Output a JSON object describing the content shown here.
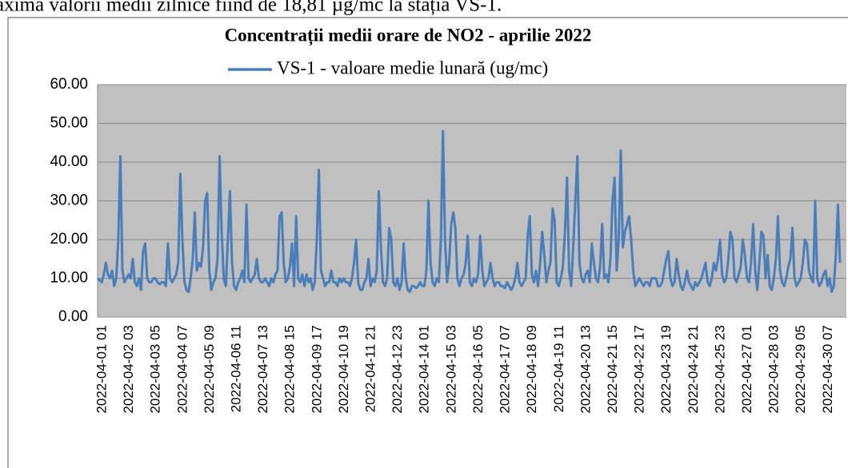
{
  "caption": "axima valorii medii zilnice fiind de 18,81 µg/mc la stația VS-1.",
  "chart_data": {
    "type": "line",
    "title": "Concentrații medii orare de NO2 - aprilie 2022",
    "ylim": [
      0,
      60
    ],
    "yticks": [
      {
        "value": 0,
        "label": "0.00"
      },
      {
        "value": 10,
        "label": "10.00"
      },
      {
        "value": 20,
        "label": "20.00"
      },
      {
        "value": 30,
        "label": "30.00"
      },
      {
        "value": 40,
        "label": "40.00"
      },
      {
        "value": 50,
        "label": "50.00"
      },
      {
        "value": 60,
        "label": "60.00"
      }
    ],
    "grid": true,
    "legend": "top",
    "categories": [
      "2022-04-01 01",
      null,
      null,
      null,
      null,
      null,
      null,
      null,
      null,
      null,
      null,
      null,
      null,
      "2022-04-02 03",
      null,
      null,
      null,
      null,
      null,
      null,
      null,
      null,
      null,
      null,
      null,
      null,
      "2022-04-03 05",
      null,
      null,
      null,
      null,
      null,
      null,
      null,
      null,
      null,
      null,
      null,
      null,
      "2022-04-04 07",
      null,
      null,
      null,
      null,
      null,
      null,
      null,
      null,
      null,
      null,
      null,
      null,
      "2022-04-05 09",
      null,
      null,
      null,
      null,
      null,
      null,
      null,
      null,
      null,
      null,
      null,
      null,
      "2022-04-06 11",
      null,
      null,
      null,
      null,
      null,
      null,
      null,
      null,
      null,
      null,
      null,
      null,
      "2022-04-07 13",
      null,
      null,
      null,
      null,
      null,
      null,
      null,
      null,
      null,
      null,
      null,
      null,
      "2022-04-08 15",
      null,
      null,
      null,
      null,
      null,
      null,
      null,
      null,
      null,
      null,
      null,
      null,
      "2022-04-09 17",
      null,
      null,
      null,
      null,
      null,
      null,
      null,
      null,
      null,
      null,
      null,
      null,
      "2022-04-10 19",
      null,
      null,
      null,
      null,
      null,
      null,
      null,
      null,
      null,
      null,
      null,
      null,
      "2022-04-11 21",
      null,
      null,
      null,
      null,
      null,
      null,
      null,
      null,
      null,
      null,
      null,
      null,
      "2022-04-12 23",
      null,
      null,
      null,
      null,
      null,
      null,
      null,
      null,
      null,
      null,
      null,
      null,
      "2022-04-14 01",
      null,
      null,
      null,
      null,
      null,
      null,
      null,
      null,
      null,
      null,
      null,
      null,
      "2022-04-15 03",
      null,
      null,
      null,
      null,
      null,
      null,
      null,
      null,
      null,
      null,
      null,
      null,
      "2022-04-16 05",
      null,
      null,
      null,
      null,
      null,
      null,
      null,
      null,
      null,
      null,
      null,
      null,
      "2022-04-17 07",
      null,
      null,
      null,
      null,
      null,
      null,
      null,
      null,
      null,
      null,
      null,
      null,
      "2022-04-18 09",
      null,
      null,
      null,
      null,
      null,
      null,
      null,
      null,
      null,
      null,
      null,
      null,
      "2022-04-19 11",
      null,
      null,
      null,
      null,
      null,
      null,
      null,
      null,
      null,
      null,
      null,
      null,
      "2022-04-20 13",
      null,
      null,
      null,
      null,
      null,
      null,
      null,
      null,
      null,
      null,
      null,
      null,
      "2022-04-21 15",
      null,
      null,
      null,
      null,
      null,
      null,
      null,
      null,
      null,
      null,
      null,
      null,
      "2022-04-22 17",
      null,
      null,
      null,
      null,
      null,
      null,
      null,
      null,
      null,
      null,
      null,
      null,
      "2022-04-23 19",
      null,
      null,
      null,
      null,
      null,
      null,
      null,
      null,
      null,
      null,
      null,
      null,
      "2022-04-24 21",
      null,
      null,
      null,
      null,
      null,
      null,
      null,
      null,
      null,
      null,
      null,
      null,
      "2022-04-25 23",
      null,
      null,
      null,
      null,
      null,
      null,
      null,
      null,
      null,
      null,
      null,
      null,
      "2022-04-27 01",
      null,
      null,
      null,
      null,
      null,
      null,
      null,
      null,
      null,
      null,
      null,
      null,
      "2022-04-28 03",
      null,
      null,
      null,
      null,
      null,
      null,
      null,
      null,
      null,
      null,
      null,
      null,
      "2022-04-29 05",
      null,
      null,
      null,
      null,
      null,
      null,
      null,
      null,
      null,
      null,
      null,
      null,
      "2022-04-30 07",
      null,
      null,
      null,
      null,
      null,
      null,
      null,
      null
    ],
    "series": [
      {
        "name": "VS-1 - valoare medie lunară (ug/mc)",
        "color": "#4a7ebb",
        "values": [
          10,
          9.5,
          9,
          11,
          14,
          11,
          10,
          12,
          8,
          10,
          20,
          41.5,
          12,
          9,
          10,
          11,
          10,
          15,
          9,
          8,
          10,
          7,
          17,
          19,
          10,
          9,
          9,
          10,
          10,
          9,
          8.5,
          9,
          9,
          8,
          19,
          10,
          9,
          10,
          11,
          14,
          37,
          20,
          9,
          7,
          6.5,
          10,
          15,
          27,
          12,
          14,
          13,
          18,
          30,
          32,
          12,
          7,
          9,
          10,
          15,
          41.5,
          22,
          10,
          8,
          20,
          32.5,
          14,
          8,
          7,
          9,
          10,
          12,
          9,
          29,
          10,
          9,
          10,
          11,
          15,
          10,
          9,
          9,
          10,
          9,
          8,
          10,
          9,
          11,
          12,
          26,
          27,
          14,
          9,
          10,
          13,
          19,
          8,
          26,
          10,
          9,
          11,
          8,
          11,
          9,
          10,
          7,
          9,
          20,
          38,
          12,
          10,
          8,
          9,
          9,
          12,
          9,
          9,
          8,
          10,
          9,
          10,
          9,
          9,
          8,
          10,
          14,
          20,
          9,
          7,
          7,
          9,
          10,
          15,
          8,
          10,
          9,
          12,
          32.5,
          18,
          9,
          8,
          10,
          23,
          20,
          9,
          8,
          10,
          7,
          9,
          19,
          10,
          7,
          6.5,
          8,
          8,
          7.5,
          8,
          9,
          8,
          8,
          12,
          30,
          14,
          9,
          8,
          10,
          9,
          20,
          48,
          20,
          9,
          14,
          24,
          27,
          23,
          10,
          8,
          10,
          11,
          14,
          21,
          9,
          8,
          10,
          9,
          11,
          21,
          12,
          8,
          9,
          10,
          14,
          10,
          8,
          9,
          9,
          8,
          8,
          7.5,
          9,
          8,
          7,
          8,
          10,
          14,
          9,
          8,
          9,
          10,
          21,
          26,
          11,
          9,
          12,
          8,
          14,
          22,
          16,
          9,
          12,
          14,
          28,
          25,
          9,
          8,
          10,
          13,
          22,
          36,
          12,
          8,
          18,
          30,
          41.5,
          14,
          10,
          9,
          11,
          12,
          9,
          19,
          14,
          10,
          9,
          13,
          24,
          10,
          11,
          9,
          15,
          30,
          36,
          12,
          20,
          43,
          18,
          22,
          24,
          26,
          20,
          12,
          8,
          9,
          10,
          9,
          8,
          9,
          9,
          8,
          10,
          10,
          10,
          8,
          8,
          9,
          12,
          15,
          17,
          10,
          8,
          9,
          15,
          11,
          8,
          7,
          9,
          12,
          9,
          8,
          7,
          9,
          8,
          9,
          10,
          12,
          14,
          9,
          8,
          10,
          14,
          12,
          15,
          20,
          11,
          9,
          10,
          15,
          22,
          20,
          10,
          9,
          11,
          13,
          20,
          16,
          10,
          9,
          14,
          24,
          12,
          7,
          14,
          22,
          21,
          10,
          16,
          8,
          7,
          10,
          15,
          26,
          12,
          9,
          8,
          10,
          13,
          15,
          23,
          10,
          8,
          9,
          10,
          14,
          20,
          19,
          12,
          10,
          9,
          30,
          10,
          8,
          9,
          11,
          12,
          8,
          10,
          6.5,
          8,
          16,
          29,
          14
        ]
      }
    ]
  }
}
